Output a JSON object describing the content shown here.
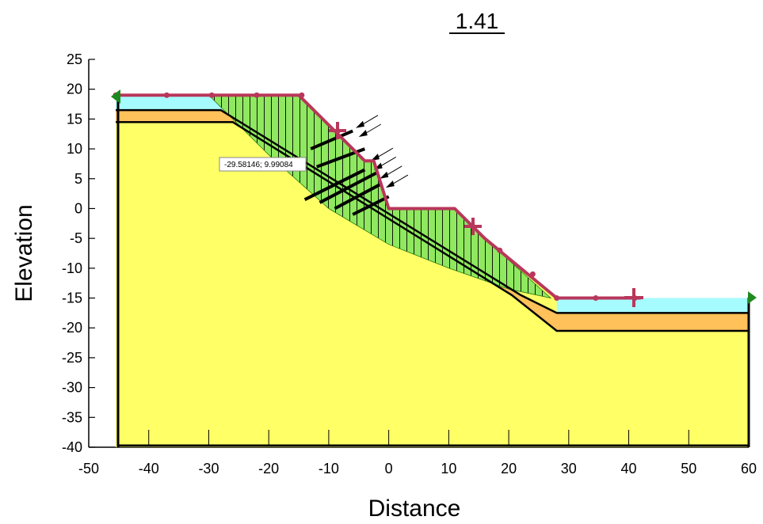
{
  "title": "1.41",
  "xaxis_label": "Distance",
  "yaxis_label": "Elevation",
  "cursor_readout": "-29.58146; 9.99084",
  "x_ticks": [
    "-50",
    "-40",
    "-30",
    "-20",
    "-10",
    "0",
    "10",
    "20",
    "30",
    "40",
    "50",
    "60"
  ],
  "y_ticks": [
    "25",
    "20",
    "15",
    "10",
    "5",
    "0",
    "-5",
    "-10",
    "-15",
    "-20",
    "-25",
    "-30",
    "-35",
    "-40"
  ],
  "colors": {
    "background_soil": "#ffff66",
    "water": "#a6fbff",
    "orange_layer": "#ffc15a",
    "sliding_mass": "#8fe85f",
    "slip_surface_line": "#b8375a",
    "boundary": "#000000",
    "marker_green": "#1e8a1e"
  },
  "chart_data": {
    "type": "slope-stability-section",
    "factor_of_safety": 1.41,
    "x_range": [
      -50,
      60
    ],
    "y_range": [
      -40,
      25
    ],
    "ground_surface": [
      [
        -45.5,
        19
      ],
      [
        -15,
        19
      ],
      [
        -8,
        12
      ],
      [
        -4,
        8
      ],
      [
        -2.5,
        8
      ],
      [
        0,
        0
      ],
      [
        11,
        0
      ],
      [
        16,
        -5
      ],
      [
        28,
        -15
      ],
      [
        60,
        -15
      ]
    ],
    "water_table": [
      [
        -45.5,
        19
      ],
      [
        -15,
        19
      ],
      [
        -8,
        12
      ],
      [
        -4,
        8
      ],
      [
        -2.5,
        8
      ],
      [
        0,
        0
      ],
      [
        11,
        0
      ],
      [
        16,
        -5
      ],
      [
        28,
        -15
      ],
      [
        42,
        -15
      ]
    ],
    "orange_layer_top": [
      [
        -45.5,
        16.5
      ],
      [
        -28,
        16.5
      ],
      [
        22,
        -14.5
      ],
      [
        28,
        -17.5
      ],
      [
        60,
        -17.5
      ]
    ],
    "yellow_layer_top": [
      [
        -45.5,
        14.5
      ],
      [
        -26,
        14.5
      ],
      [
        20.5,
        -14.5
      ],
      [
        28,
        -20.5
      ],
      [
        60,
        -20.5
      ]
    ],
    "slip_surface": [
      [
        -30,
        19
      ],
      [
        -20,
        9
      ],
      [
        -10,
        0
      ],
      [
        0,
        -6
      ],
      [
        10,
        -10
      ],
      [
        20,
        -13.5
      ],
      [
        27,
        -15
      ]
    ],
    "surface_markers": [
      [
        -45.5,
        19
      ],
      [
        -37,
        19
      ],
      [
        -29.5,
        19
      ],
      [
        -22,
        19
      ],
      [
        -14.5,
        19
      ],
      [
        -8.5,
        13
      ],
      [
        14,
        -3
      ],
      [
        18.5,
        -7
      ],
      [
        24,
        -11
      ],
      [
        28,
        -15
      ],
      [
        34.5,
        -15
      ],
      [
        41,
        -15
      ]
    ],
    "anchor_bars": [
      [
        [
          -13,
          10
        ],
        [
          -6,
          13
        ]
      ],
      [
        [
          -12,
          7
        ],
        [
          -4,
          10
        ]
      ],
      [
        [
          -14,
          1.5
        ],
        [
          -4,
          6.5
        ]
      ],
      [
        [
          -11.5,
          1
        ],
        [
          -2,
          6
        ]
      ],
      [
        [
          -9,
          0
        ],
        [
          -1.5,
          4
        ]
      ],
      [
        [
          -6,
          -1
        ],
        [
          0,
          2
        ]
      ]
    ],
    "load_arrows": [
      [
        -5.5,
        13.5
      ],
      [
        -5,
        12
      ],
      [
        -3,
        8
      ],
      [
        -2.5,
        6.5
      ],
      [
        -1.5,
        5
      ],
      [
        -0.5,
        3.5
      ]
    ]
  }
}
